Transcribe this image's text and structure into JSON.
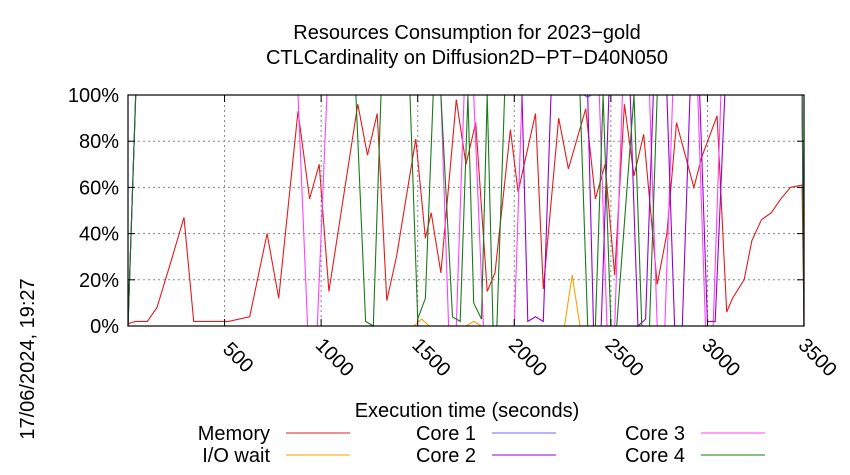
{
  "chart_data": {
    "type": "line",
    "title": "Resources Consumption for 2023−gold",
    "subtitle": "CTLCardinality on Diffusion2D−PT−D40N050",
    "xlabel": "Execution time (seconds)",
    "ylabel": "",
    "side_label": "17/06/2024, 19:27",
    "xlim": [
      0,
      3500
    ],
    "ylim": [
      0,
      100
    ],
    "x_ticks": [
      500,
      1000,
      1500,
      2000,
      2500,
      3000,
      3500
    ],
    "y_ticks": [
      0,
      20,
      40,
      60,
      80,
      100
    ],
    "y_tick_labels": [
      "0%",
      "20%",
      "40%",
      "60%",
      "80%",
      "100%"
    ],
    "grid": true,
    "legend_position": "bottom",
    "series": [
      {
        "name": "Memory",
        "color": "#e41a1c",
        "x": [
          0,
          40,
          100,
          150,
          230,
          290,
          340,
          470,
          520,
          630,
          720,
          780,
          880,
          940,
          990,
          1040,
          1190,
          1240,
          1290,
          1340,
          1390,
          1490,
          1540,
          1570,
          1620,
          1700,
          1750,
          1800,
          1860,
          1900,
          1980,
          2020,
          2110,
          2150,
          2230,
          2280,
          2370,
          2420,
          2470,
          2520,
          2570,
          2620,
          2670,
          2740,
          2790,
          2840,
          2930,
          2970,
          3050,
          3100,
          3130,
          3190,
          3230,
          3280,
          3330,
          3380,
          3430,
          3490,
          3500
        ],
        "values": [
          1,
          2,
          2,
          8,
          30,
          47,
          2,
          2,
          2,
          4,
          40,
          12,
          93,
          55,
          70,
          15,
          96,
          74,
          92,
          11,
          30,
          81,
          38,
          49,
          23,
          98,
          70,
          88,
          15,
          23,
          85,
          58,
          92,
          16,
          90,
          68,
          94,
          55,
          70,
          22,
          96,
          65,
          83,
          18,
          40,
          88,
          60,
          73,
          91,
          6,
          12,
          20,
          37,
          46,
          49,
          55,
          60,
          61,
          0
        ]
      },
      {
        "name": "I/O wait",
        "color": "#ff9f00",
        "x": [
          0,
          1480,
          1520,
          1560,
          1750,
          1790,
          1830,
          2260,
          2300,
          2340,
          2380,
          3500
        ],
        "values": [
          0,
          0,
          3,
          0,
          0,
          2,
          0,
          0,
          22,
          0,
          0,
          0
        ]
      },
      {
        "name": "Core 1",
        "color": "#6b6bff",
        "x": [
          0,
          40,
          980,
          1000,
          2360,
          2380,
          2400,
          2420,
          2500,
          3500
        ],
        "values": [
          0,
          100,
          100,
          100,
          100,
          99,
          100,
          100,
          100,
          100
        ]
      },
      {
        "name": "Core 2",
        "color": "#9400d3",
        "x": [
          0,
          40,
          2040,
          2070,
          2110,
          2150,
          2190,
          2380,
          2410,
          2450,
          2490,
          2600,
          2640,
          2680,
          2720,
          2790,
          2830,
          2870,
          2910,
          2960,
          3000,
          3040,
          3090,
          3130,
          3490,
          3500
        ],
        "values": [
          0,
          100,
          100,
          2,
          4,
          2,
          100,
          100,
          0,
          0,
          100,
          100,
          0,
          3,
          100,
          100,
          0,
          0,
          100,
          100,
          2,
          2,
          100,
          100,
          100,
          0
        ]
      },
      {
        "name": "Core 3",
        "color": "#ff40ff",
        "x": [
          0,
          40,
          880,
          930,
          980,
          1030,
          1080,
          1620,
          1660,
          1700,
          1740,
          1790,
          1840,
          2000,
          2040,
          2440,
          2480,
          2520,
          2560,
          2700,
          2740,
          2780,
          2820,
          2950,
          2990,
          3030,
          3070,
          3100,
          3140,
          3490,
          3500
        ],
        "values": [
          0,
          100,
          100,
          0,
          0,
          100,
          100,
          100,
          0,
          0,
          100,
          100,
          0,
          0,
          100,
          100,
          0,
          0,
          100,
          100,
          0,
          0,
          100,
          100,
          0,
          0,
          100,
          100,
          100,
          100,
          0
        ]
      },
      {
        "name": "Core 4",
        "color": "#1a7a1a",
        "x": [
          0,
          40,
          1180,
          1230,
          1270,
          1310,
          1340,
          1460,
          1500,
          1540,
          1580,
          1620,
          1680,
          1720,
          1760,
          1790,
          1830,
          1860,
          1890,
          1910,
          1950,
          2340,
          2380,
          2420,
          2460,
          2500,
          2530,
          2620,
          2660,
          2700,
          2740,
          2780,
          2820,
          3490,
          3500
        ],
        "values": [
          0,
          100,
          100,
          2,
          0,
          100,
          100,
          100,
          3,
          12,
          100,
          100,
          4,
          2,
          100,
          10,
          3,
          100,
          0,
          0,
          100,
          100,
          0,
          0,
          100,
          0,
          0,
          100,
          0,
          0,
          100,
          100,
          100,
          100,
          0
        ]
      }
    ]
  }
}
